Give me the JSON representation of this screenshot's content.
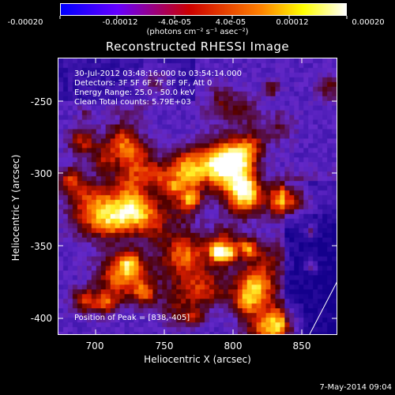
{
  "colorbar": {
    "tick_labels": [
      "-0.00020",
      "-0.00012",
      "-4.0e-05",
      "4.0e-05",
      "0.00012",
      "0.00020"
    ],
    "units": "(photons cm⁻² s⁻¹ asec⁻²)",
    "colors": [
      "#0000ff",
      "#7f00ff",
      "#ff0000",
      "#ff8000",
      "#ffff00",
      "#ffffff"
    ]
  },
  "plot": {
    "title": "Reconstructed RHESSI Image",
    "info_lines": [
      "30-Jul-2012 03:48:16.000 to 03:54:14.000",
      "Detectors: 3F 5F 6F 7F 8F 9F, Att 0",
      "Energy Range: 25.0 - 50.0 keV",
      "Clean     Total counts: 5.79E+03"
    ],
    "peak_label": "Position of Peak = [838,-405]",
    "x_axis_label": "Heliocentric X (arcsec)",
    "y_axis_label": "Heliocentric Y (arcsec)",
    "x_ticks": [
      "700",
      "750",
      "800",
      "850"
    ],
    "y_ticks": [
      "-250",
      "-300",
      "-350",
      "-400"
    ],
    "x_range": [
      677,
      870
    ],
    "y_range": [
      -412,
      -225
    ]
  },
  "timestamp": "7-May-2014 09:04"
}
